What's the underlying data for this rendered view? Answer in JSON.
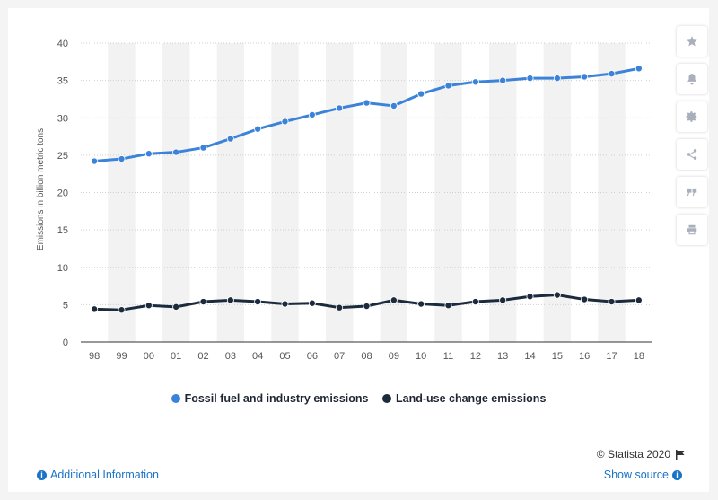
{
  "toolbar": {
    "star_icon": "star-icon",
    "bell_icon": "bell-icon",
    "gear_icon": "gear-icon",
    "share_icon": "share-icon",
    "quote_icon": "quote-icon",
    "print_icon": "print-icon"
  },
  "footer": {
    "copyright": "© Statista 2020",
    "additional_info": "Additional Information",
    "show_source": "Show source"
  },
  "colors": {
    "fossil": "#3b83d9",
    "landuse": "#1b2a3c",
    "band": "#f2f2f2",
    "grid": "#cfcfcf"
  },
  "chart_data": {
    "type": "line",
    "ylabel": "Emissions in billion metric tons",
    "xlabel": "",
    "ylim": [
      0,
      40
    ],
    "yticks": [
      0,
      5,
      10,
      15,
      20,
      25,
      30,
      35,
      40
    ],
    "grid": true,
    "legend_position": "bottom",
    "categories": [
      "98",
      "99",
      "00",
      "01",
      "02",
      "03",
      "04",
      "05",
      "06",
      "07",
      "08",
      "09",
      "10",
      "11",
      "12",
      "13",
      "14",
      "15",
      "16",
      "17",
      "18"
    ],
    "series": [
      {
        "name": "Fossil fuel and industry emissions",
        "color": "#3b83d9",
        "values": [
          24.2,
          24.5,
          25.2,
          25.4,
          26.0,
          27.2,
          28.5,
          29.5,
          30.4,
          31.3,
          32.0,
          31.6,
          33.2,
          34.3,
          34.8,
          35.0,
          35.3,
          35.3,
          35.5,
          35.9,
          36.6
        ]
      },
      {
        "name": "Land-use change emissions",
        "color": "#1b2a3c",
        "values": [
          4.4,
          4.3,
          4.9,
          4.7,
          5.4,
          5.6,
          5.4,
          5.1,
          5.2,
          4.6,
          4.8,
          5.6,
          5.1,
          4.9,
          5.4,
          5.6,
          6.1,
          6.3,
          5.7,
          5.4,
          5.6
        ]
      }
    ]
  }
}
